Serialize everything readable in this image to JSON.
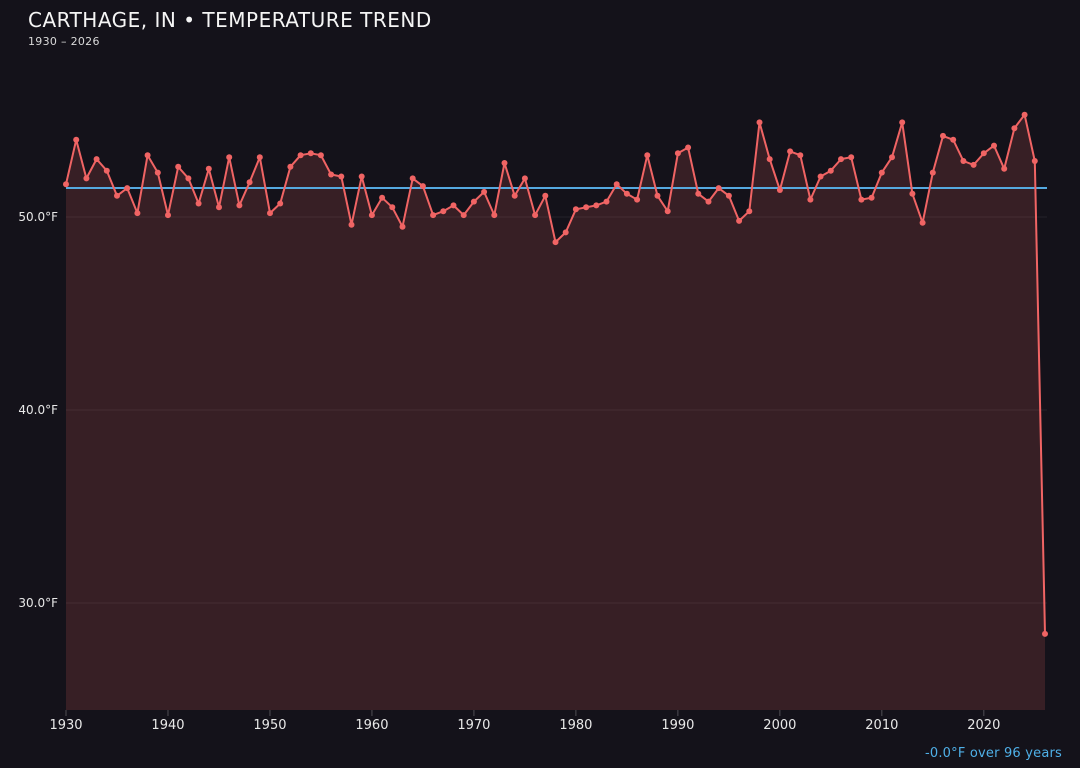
{
  "header": {
    "title": "CARTHAGE, IN • TEMPERATURE TREND",
    "subtitle": "1930 – 2026"
  },
  "footer": {
    "trend_summary": "-0.0°F over 96 years"
  },
  "chart_data": {
    "type": "line",
    "title": "CARTHAGE, IN • TEMPERATURE TREND",
    "subtitle": "1930 – 2026",
    "unit": "°F",
    "start_year": 1930,
    "end_year": 2026,
    "values": [
      51.7,
      54.0,
      52.0,
      53.0,
      52.4,
      51.1,
      51.5,
      50.2,
      53.2,
      52.3,
      50.1,
      52.6,
      52.0,
      50.7,
      52.5,
      50.5,
      53.1,
      50.6,
      51.8,
      53.1,
      50.2,
      50.7,
      52.6,
      53.2,
      53.3,
      53.2,
      52.2,
      52.1,
      49.6,
      52.1,
      50.1,
      51.0,
      50.5,
      49.5,
      52.0,
      51.6,
      50.1,
      50.3,
      50.6,
      50.1,
      50.8,
      51.3,
      50.1,
      52.8,
      51.1,
      52.0,
      50.1,
      51.1,
      48.7,
      49.2,
      50.4,
      50.5,
      50.6,
      50.8,
      51.7,
      51.2,
      50.9,
      53.2,
      51.1,
      50.3,
      53.3,
      53.6,
      51.2,
      50.8,
      51.5,
      51.1,
      49.8,
      50.3,
      54.9,
      53.0,
      51.4,
      53.4,
      53.2,
      50.9,
      52.1,
      52.4,
      53.0,
      53.1,
      50.9,
      51.0,
      52.3,
      53.1,
      54.9,
      51.2,
      49.7,
      52.3,
      54.2,
      54.0,
      52.9,
      52.7,
      53.3,
      53.7,
      52.5,
      54.6,
      55.3,
      52.9,
      28.4
    ],
    "trend_line": {
      "flat_value": 51.5,
      "label": "-0.0°F over 96 years"
    },
    "y_ticks": [
      {
        "value": 50,
        "label": "50.0°F"
      },
      {
        "value": 40,
        "label": "40.0°F"
      },
      {
        "value": 30,
        "label": "30.0°F"
      }
    ],
    "x_ticks": [
      1930,
      1940,
      1950,
      1960,
      1970,
      1980,
      1990,
      2000,
      2010,
      2020
    ],
    "ylim": [
      24.5,
      58.0
    ],
    "grid": true,
    "legend_position": "none",
    "colors": {
      "background": "#14121a",
      "line": "#f06464",
      "area": "rgba(240,100,100,0.16)",
      "trend": "#55a9e0",
      "tick_label": "#e8e8e8",
      "grid_line": "rgba(255,255,255,0.07)",
      "annotation": "#4fb0e8"
    }
  }
}
